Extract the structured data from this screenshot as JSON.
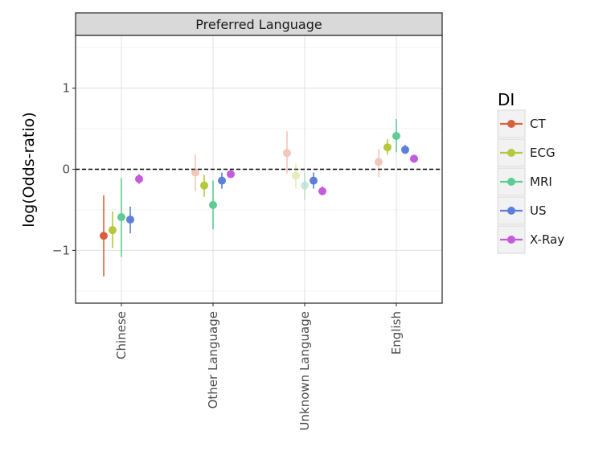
{
  "chart_data": {
    "type": "scatter",
    "subtype": "point-range (dodged, with error bars)",
    "facet_label": "Preferred Language",
    "ylabel": "log(Odds-ratio)",
    "xlabel": "",
    "categories": [
      "Chinese",
      "Other Language",
      "Unknown Language",
      "English"
    ],
    "ylim": [
      -1.65,
      1.65
    ],
    "yticks": [
      -1,
      0,
      1
    ],
    "ytick_labels": [
      "−1",
      "0",
      "1"
    ],
    "reference_line": {
      "y": 0,
      "style": "dashed",
      "color": "#000000"
    },
    "grid": true,
    "legend": {
      "title": "DI",
      "position": "right"
    },
    "series": [
      {
        "name": "CT",
        "color": "#D9603F",
        "values": [
          -0.82,
          -0.04,
          0.2,
          0.09
        ],
        "lower": [
          -1.32,
          -0.27,
          -0.05,
          -0.1
        ],
        "upper": [
          -0.32,
          0.18,
          0.47,
          0.25
        ],
        "faded": [
          false,
          true,
          true,
          true
        ]
      },
      {
        "name": "ECG",
        "color": "#B6C83B",
        "values": [
          -0.75,
          -0.2,
          -0.08,
          0.27
        ],
        "lower": [
          -0.97,
          -0.34,
          -0.24,
          0.18
        ],
        "upper": [
          -0.52,
          -0.07,
          0.07,
          0.37
        ],
        "faded": [
          false,
          false,
          true,
          false
        ]
      },
      {
        "name": "MRI",
        "color": "#5FCB95",
        "values": [
          -0.59,
          -0.44,
          -0.2,
          0.41
        ],
        "lower": [
          -1.08,
          -0.74,
          -0.38,
          0.21
        ],
        "upper": [
          -0.11,
          -0.14,
          -0.03,
          0.62
        ],
        "faded": [
          false,
          false,
          true,
          false
        ]
      },
      {
        "name": "US",
        "color": "#5B7FDB",
        "values": [
          -0.62,
          -0.14,
          -0.14,
          0.24
        ],
        "lower": [
          -0.79,
          -0.24,
          -0.24,
          0.19
        ],
        "upper": [
          -0.46,
          -0.04,
          -0.04,
          0.3
        ],
        "faded": [
          false,
          false,
          false,
          false
        ]
      },
      {
        "name": "X-Ray",
        "color": "#C45BDD",
        "values": [
          -0.12,
          -0.06,
          -0.27,
          0.13
        ],
        "lower": [
          -0.18,
          -0.1,
          -0.32,
          0.1
        ],
        "upper": [
          -0.06,
          -0.02,
          -0.21,
          0.16
        ],
        "faded": [
          false,
          false,
          false,
          false
        ]
      }
    ]
  }
}
